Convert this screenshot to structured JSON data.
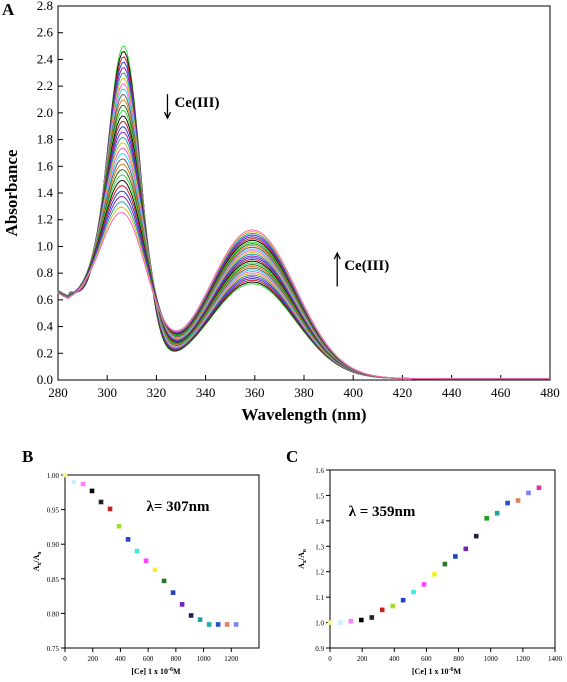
{
  "chart_data": [
    {
      "panel": "A",
      "type": "line",
      "xlabel": "Wavelength (nm)",
      "ylabel": "Absorbance",
      "xlim": [
        280,
        480
      ],
      "ylim": [
        0.0,
        2.8
      ],
      "xticks": [
        "280",
        "300",
        "320",
        "340",
        "360",
        "380",
        "400",
        "420",
        "440",
        "460",
        "480"
      ],
      "yticks": [
        "0.0",
        "0.2",
        "0.4",
        "0.6",
        "0.8",
        "1.0",
        "1.2",
        "1.4",
        "1.6",
        "1.8",
        "2.0",
        "2.2",
        "2.4",
        "2.6",
        "2.8"
      ],
      "annotations": [
        "Ce(III)",
        "Ce(III)"
      ],
      "isosbestic_point": {
        "x": 321,
        "y": 1.22
      },
      "curve_count": 32,
      "peak1_wavelength": 307,
      "peak2_wavelength": 359,
      "peak1_absorbance_range": [
        1.25,
        2.47
      ],
      "peak2_absorbance_range": [
        0.74,
        1.16
      ],
      "valley_wavelength": 338,
      "colors": [
        "#30e030",
        "#111111",
        "#cc2020",
        "#2040cc",
        "#9020c0",
        "#20a0a0",
        "#d8c020",
        "#ff60c0",
        "#40d0ff",
        "#606060",
        "#e08020",
        "#2a6a2a"
      ],
      "grid": false
    },
    {
      "panel": "B",
      "type": "scatter",
      "annotation": "λ= 307nm",
      "xlabel": "[Ce] 1 x 10-6M",
      "ylabel": "Ax/Ao",
      "xlim": [
        0,
        1400
      ],
      "ylim": [
        0.75,
        1.0
      ],
      "xticks": [
        "0",
        "200",
        "400",
        "600",
        "800",
        "1000",
        "1200"
      ],
      "yticks": [
        "0.75",
        "0.80",
        "0.85",
        "0.90",
        "0.95",
        "1.00"
      ],
      "x": [
        0,
        65,
        130,
        195,
        260,
        325,
        390,
        455,
        520,
        585,
        650,
        715,
        780,
        845,
        910,
        975,
        1040,
        1105,
        1170,
        1235
      ],
      "y": [
        1.0,
        0.99,
        0.987,
        0.977,
        0.961,
        0.951,
        0.926,
        0.907,
        0.89,
        0.876,
        0.863,
        0.847,
        0.83,
        0.813,
        0.797,
        0.791,
        0.784,
        0.784,
        0.784,
        0.784
      ],
      "colors": [
        "#f5f599",
        "#c8f0ff",
        "#ff80ff",
        "#000000",
        "#222222",
        "#cc2020",
        "#a0e030",
        "#2040cc",
        "#40e8e8",
        "#ff40ff",
        "#f0f030",
        "#2a7a2a",
        "#2040c0",
        "#7020c0",
        "#202050",
        "#20a0a0",
        "#20b0a0",
        "#2050d0",
        "#e08060",
        "#8080ff"
      ]
    },
    {
      "panel": "C",
      "type": "scatter",
      "annotation": "λ = 359nm",
      "xlabel": "[Ce] 1 x 10-6M",
      "ylabel": "Ax/Ao",
      "xlim": [
        0,
        1400
      ],
      "ylim": [
        0.9,
        1.6
      ],
      "xticks": [
        "0",
        "200",
        "400",
        "600",
        "800",
        "1000",
        "1200",
        "1400"
      ],
      "yticks": [
        "0.9",
        "1.0",
        "1.1",
        "1.2",
        "1.3",
        "1.4",
        "1.5",
        "1.6"
      ],
      "x": [
        0,
        65,
        130,
        195,
        260,
        325,
        390,
        455,
        520,
        585,
        650,
        715,
        780,
        845,
        910,
        975,
        1040,
        1105,
        1170,
        1235,
        1300
      ],
      "y": [
        1.0,
        1.0,
        1.005,
        1.01,
        1.02,
        1.05,
        1.065,
        1.088,
        1.12,
        1.15,
        1.19,
        1.23,
        1.26,
        1.29,
        1.34,
        1.41,
        1.43,
        1.47,
        1.48,
        1.51,
        1.53
      ],
      "colors": [
        "#f5f599",
        "#c8f0ff",
        "#ff80ff",
        "#000000",
        "#222222",
        "#cc2020",
        "#a0e030",
        "#2040cc",
        "#40e8e8",
        "#ff40ff",
        "#f0f030",
        "#2a7a2a",
        "#2040c0",
        "#7020c0",
        "#202050",
        "#20a020",
        "#20a0a0",
        "#2050d0",
        "#e08060",
        "#8080ff",
        "#e030a0"
      ]
    }
  ],
  "labels": {
    "panel_a": "A",
    "panel_b": "B",
    "panel_c": "C"
  }
}
